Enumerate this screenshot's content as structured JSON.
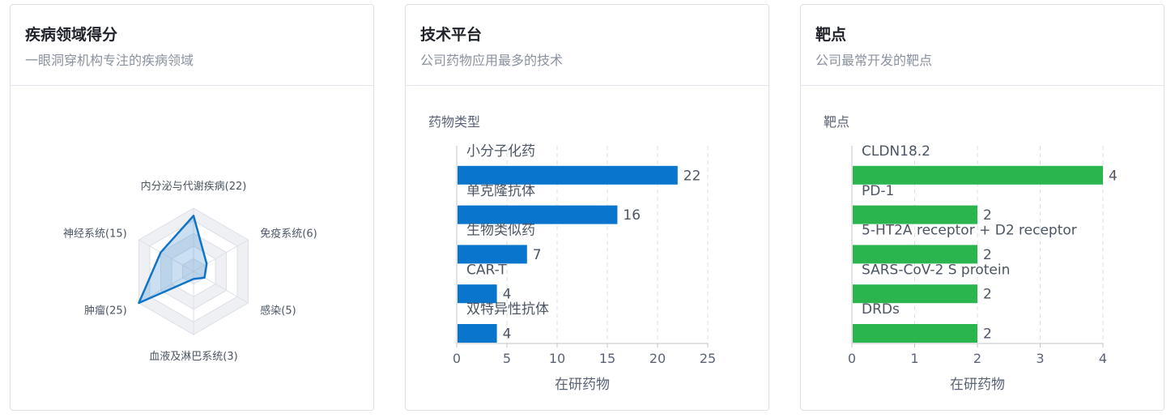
{
  "cards": [
    {
      "title": "疾病领域得分",
      "subtitle": "一眼洞穿机构专注的疾病领域"
    },
    {
      "title": "技术平台",
      "subtitle": "公司药物应用最多的技术"
    },
    {
      "title": "靶点",
      "subtitle": "公司最常开发的靶点"
    }
  ],
  "colors": {
    "radar": "#0f74c6",
    "bar_blue": "#0a75cd",
    "bar_green": "#2bb54f"
  },
  "chart_data": [
    {
      "type": "radar",
      "categories": [
        "内分泌与代谢疾病(22)",
        "免疫系统(6)",
        "感染(5)",
        "血液及淋巴系统(3)",
        "肿瘤(25)",
        "神经系统(15)"
      ],
      "values": [
        22,
        6,
        5,
        3,
        25,
        15
      ],
      "max": 25
    },
    {
      "type": "bar",
      "orientation": "horizontal",
      "category_title": "药物类型",
      "categories": [
        "小分子化药",
        "单克隆抗体",
        "生物类似药",
        "CAR-T",
        "双特异性抗体"
      ],
      "values": [
        22,
        16,
        7,
        4,
        4
      ],
      "xlabel": "在研药物",
      "xlim": [
        0,
        25
      ],
      "xticks": [
        0,
        5,
        10,
        15,
        20,
        25
      ]
    },
    {
      "type": "bar",
      "orientation": "horizontal",
      "category_title": "靶点",
      "categories": [
        "CLDN18.2",
        "PD-1",
        "5-HT2A receptor + D2 receptor",
        "SARS-CoV-2 S protein",
        "DRDs"
      ],
      "values": [
        4,
        2,
        2,
        2,
        2
      ],
      "xlabel": "在研药物",
      "xlim": [
        0,
        4
      ],
      "xticks": [
        0,
        1,
        2,
        3,
        4
      ]
    }
  ]
}
